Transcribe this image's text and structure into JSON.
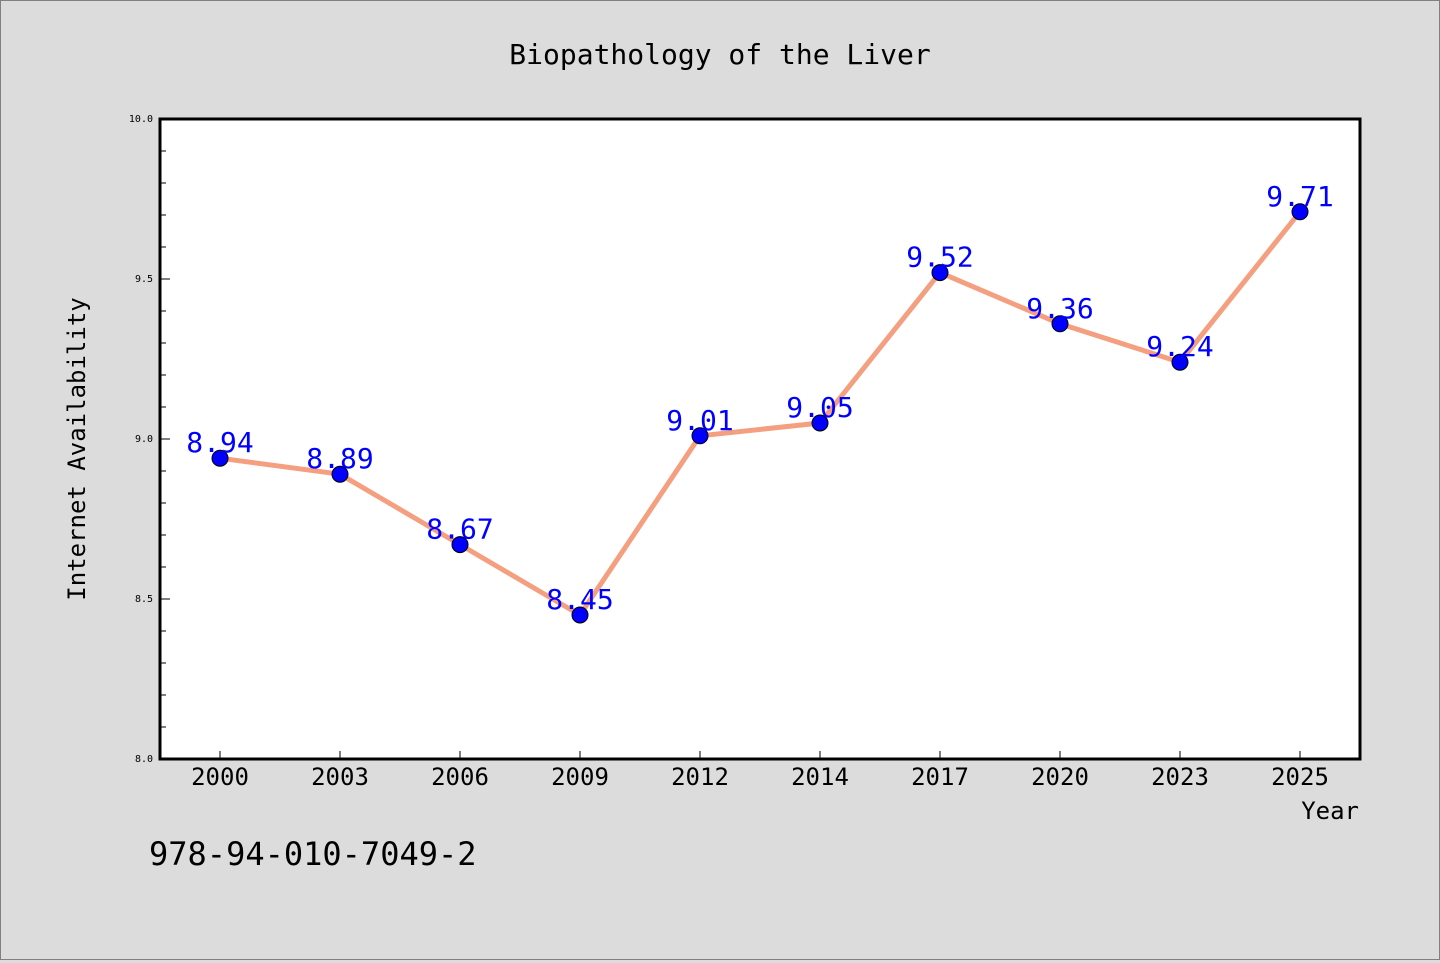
{
  "chart_data": {
    "type": "line",
    "title": "Biopathology of the Liver",
    "xlabel": "Year",
    "ylabel": "Internet Availability",
    "categories": [
      "2000",
      "2003",
      "2006",
      "2009",
      "2012",
      "2014",
      "2017",
      "2020",
      "2023",
      "2025"
    ],
    "series": [
      {
        "values": [
          8.94,
          8.89,
          8.67,
          8.45,
          9.01,
          9.05,
          9.52,
          9.36,
          9.24,
          9.71
        ],
        "labels": [
          "8.94",
          "8.89",
          "8.67",
          "8.45",
          "9.01",
          "9.05",
          "9.52",
          "9.36",
          "9.24",
          "9.71"
        ]
      }
    ],
    "ylim": [
      8.0,
      10.0
    ],
    "yticks": [
      "8.0",
      "8.5",
      "9.0",
      "9.5",
      "10.0"
    ],
    "grid": false,
    "colors": {
      "line": "#f4a080",
      "marker": "#0000ff",
      "data_label": "#0000ff",
      "background": "#dcdcdc",
      "plot_background": "#ffffff"
    }
  },
  "footer_text": "978-94-010-7049-2"
}
